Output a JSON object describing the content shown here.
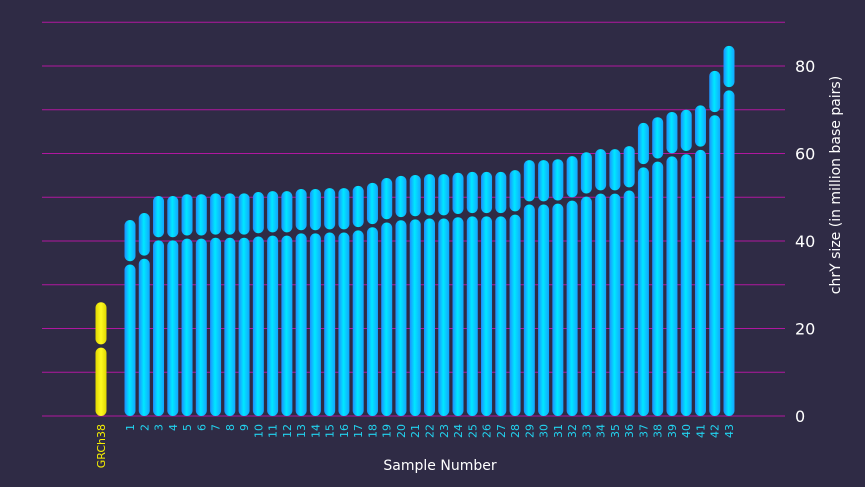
{
  "chart_data": {
    "type": "bar",
    "xlabel": "Sample Number",
    "ylabel": "chrY size (in million base pairs)",
    "ylim": [
      0,
      90
    ],
    "yticks": [
      0,
      20,
      40,
      60,
      80
    ],
    "grid": true,
    "reference": {
      "label": "GRCh38",
      "value": 26,
      "centromere": 16,
      "color": "#f5f000"
    },
    "categories": [
      "1",
      "2",
      "3",
      "4",
      "5",
      "6",
      "7",
      "8",
      "9",
      "10",
      "11",
      "12",
      "13",
      "14",
      "15",
      "16",
      "17",
      "18",
      "19",
      "20",
      "21",
      "22",
      "23",
      "24",
      "25",
      "26",
      "27",
      "28",
      "29",
      "30",
      "31",
      "32",
      "33",
      "34",
      "35",
      "36",
      "37",
      "38",
      "39",
      "40",
      "41",
      "42",
      "43"
    ],
    "values": [
      44.8,
      46.4,
      50.3,
      50.3,
      50.7,
      50.7,
      50.9,
      50.9,
      50.9,
      51.2,
      51.4,
      51.4,
      51.9,
      51.9,
      52.1,
      52.1,
      52.6,
      53.3,
      54.4,
      54.9,
      55.1,
      55.3,
      55.3,
      55.6,
      55.8,
      55.8,
      55.8,
      56.2,
      58.5,
      58.5,
      58.7,
      59.4,
      60.3,
      61.0,
      61.0,
      61.7,
      67.0,
      68.3,
      69.5,
      70.0,
      71.0,
      78.9,
      84.6
    ],
    "centromeres": [
      35,
      36.3,
      40.5,
      40.5,
      40.9,
      40.9,
      41.1,
      41.1,
      41.1,
      41.4,
      41.6,
      41.6,
      42.1,
      42.1,
      42.3,
      42.3,
      42.8,
      43.5,
      44.6,
      45.1,
      45.3,
      45.5,
      45.5,
      45.8,
      46.0,
      46.0,
      46.0,
      46.4,
      48.7,
      48.7,
      48.9,
      49.6,
      50.5,
      51.2,
      51.2,
      51.9,
      57.2,
      58.5,
      59.7,
      60.2,
      61.2,
      69.1,
      74.8
    ],
    "colors": {
      "bars": "#00d8ff",
      "reference": "#f5f000",
      "grid": "#b0179f",
      "background": "#2f2b45",
      "sample_labels": "#22d4f0"
    }
  }
}
